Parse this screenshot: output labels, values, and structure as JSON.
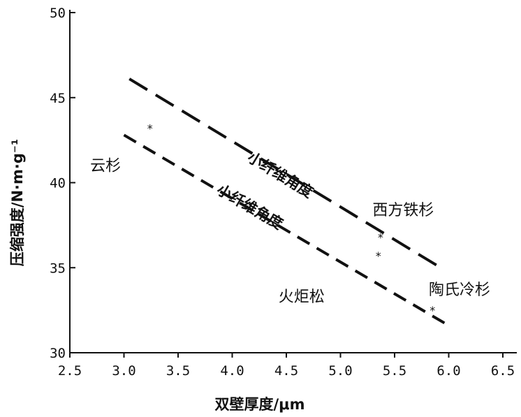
{
  "chart_data": {
    "type": "scatter",
    "xlabel": "双壁厚度/μm",
    "ylabel": "压缩强度/N·m·g⁻¹",
    "xlim": [
      2.5,
      6.5
    ],
    "ylim": [
      30,
      50
    ],
    "x_ticks": [
      "2.5",
      "3.0",
      "3.5",
      "4.0",
      "4.5",
      "5.0",
      "5.5",
      "6.0",
      "6.5"
    ],
    "y_ticks": [
      "30",
      "35",
      "40",
      "45",
      "50"
    ],
    "grid": false,
    "lines": [
      {
        "label": "小纤维角度",
        "style": "long-dash",
        "x": [
          3.05,
          5.9
        ],
        "y": [
          46.1,
          35.1
        ]
      },
      {
        "label": "小纤维角度",
        "style": "dash",
        "x": [
          3.0,
          6.0
        ],
        "y": [
          42.8,
          31.6
        ]
      }
    ],
    "points": [
      {
        "x": 3.24,
        "y": 43.2
      },
      {
        "x": 5.37,
        "y": 36.8
      },
      {
        "x": 5.35,
        "y": 35.7
      },
      {
        "x": 5.85,
        "y": 32.5
      }
    ],
    "annotations": [
      {
        "text": "云杉",
        "x": 2.83,
        "y": 40.7
      },
      {
        "text": "西方铁杉",
        "x": 5.58,
        "y": 38.1
      },
      {
        "text": "火炬松",
        "x": 4.64,
        "y": 33.0
      },
      {
        "text": "陶氏冷杉",
        "x": 6.1,
        "y": 33.4
      }
    ]
  }
}
